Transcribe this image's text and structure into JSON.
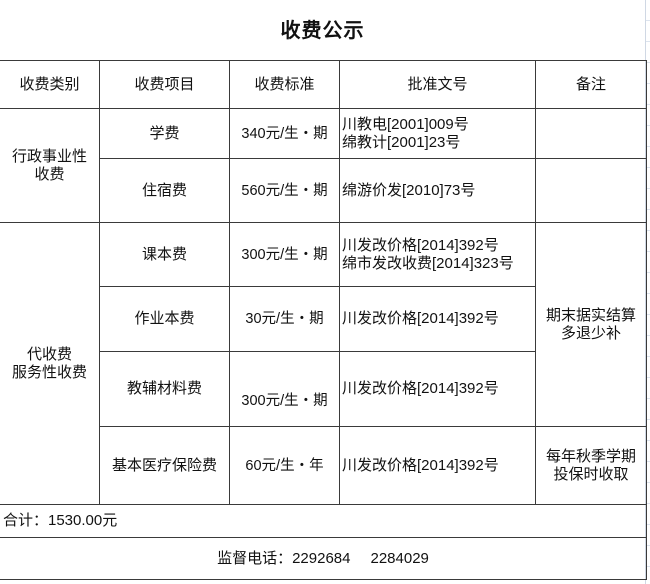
{
  "title": "收费公示",
  "headers": [
    "收费类别",
    "收费项目",
    "收费标准",
    "批准文号",
    "备注"
  ],
  "categories": [
    {
      "lines": [
        "行政事业性",
        "收费"
      ]
    },
    {
      "lines": [
        "代收费",
        "服务性收费"
      ]
    }
  ],
  "rows": [
    {
      "item": "学费",
      "standard": "340元/生・期",
      "docs": [
        "川教电[2001]009号",
        "绵教计[2001]23号"
      ]
    },
    {
      "item": "住宿费",
      "standard": "560元/生・期",
      "docs": [
        "绵游价发[2010]73号"
      ]
    },
    {
      "item": "课本费",
      "standard": "300元/生・期",
      "docs": [
        "川发改价格[2014]392号",
        "绵市发改收费[2014]323号"
      ]
    },
    {
      "item": "作业本费",
      "standard": "30元/生・期",
      "docs": [
        "川发改价格[2014]392号"
      ]
    },
    {
      "item": "教辅材料费",
      "standard": "300元/生・期",
      "docs": [
        "川发改价格[2014]392号"
      ]
    },
    {
      "item": "基本医疗保险费",
      "standard": "60元/生・年",
      "docs": [
        "川发改价格[2014]392号"
      ]
    }
  ],
  "remarks": [
    {
      "lines": [
        "期末据实结算",
        "多退少补"
      ]
    },
    {
      "lines": [
        "每年秋季学期",
        "投保时收取"
      ]
    }
  ],
  "total": "合计：1530.00元",
  "phone": {
    "label": "监督电话：2292684",
    "second": "2284029"
  }
}
